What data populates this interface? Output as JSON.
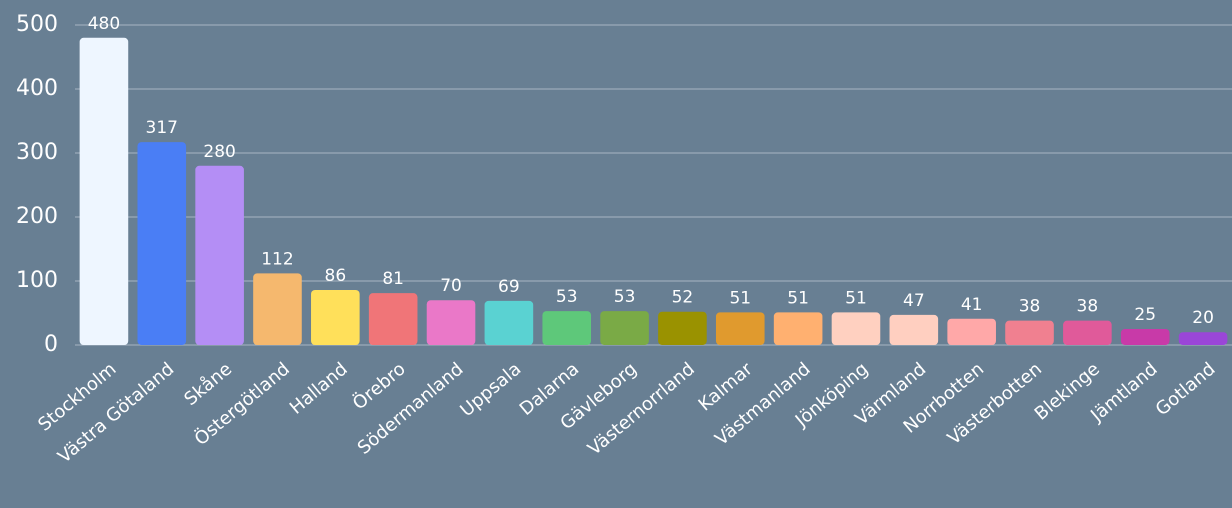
{
  "chart_data": {
    "type": "bar",
    "categories": [
      "Stockholm",
      "Västra Götaland",
      "Skåne",
      "Östergötland",
      "Halland",
      "Örebro",
      "Södermanland",
      "Uppsala",
      "Dalarna",
      "Gävleborg",
      "Västernorrland",
      "Kalmar",
      "Västmanland",
      "Jönköping",
      "Värmland",
      "Norrbotten",
      "Västerbotten",
      "Blekinge",
      "Jämtland",
      "Gotland"
    ],
    "values": [
      480,
      317,
      280,
      112,
      86,
      81,
      70,
      69,
      53,
      53,
      52,
      51,
      51,
      51,
      47,
      41,
      38,
      38,
      25,
      20
    ],
    "colors": [
      "#eef6ff",
      "#4a7ef5",
      "#b48ef5",
      "#f5b86e",
      "#ffe05a",
      "#f07578",
      "#ea78c8",
      "#5ad2d2",
      "#5ec87a",
      "#7aaa46",
      "#9a9200",
      "#e09a2e",
      "#ffb070",
      "#ffd0c0",
      "#ffcfc0",
      "#ffa8a8",
      "#f08090",
      "#e05a9a",
      "#c83aa8",
      "#9a46d8"
    ],
    "ylim": [
      0,
      500
    ],
    "yticks": [
      0,
      100,
      200,
      300,
      400,
      500
    ],
    "grid": true
  }
}
